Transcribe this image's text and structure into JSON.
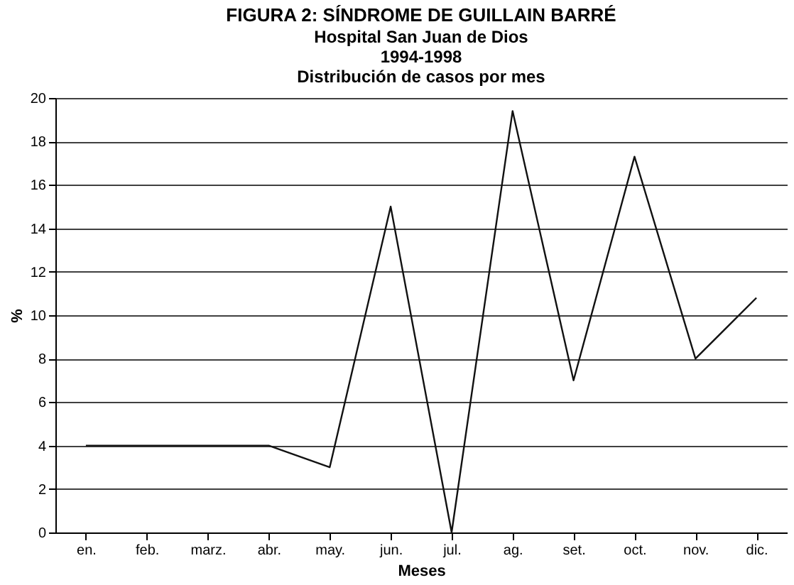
{
  "chart_data": {
    "type": "line",
    "title": "FIGURA 2: SÍNDROME DE GUILLAIN BARRÉ",
    "subtitle": "Hospital San Juan de Dios\n1994-1998\nDistribución de casos por mes",
    "xlabel": "Meses",
    "ylabel": "%",
    "categories": [
      "en.",
      "feb.",
      "marz.",
      "abr.",
      "may.",
      "jun.",
      "jul.",
      "ag.",
      "set.",
      "oct.",
      "nov.",
      "dic."
    ],
    "series": [
      {
        "color": "#111111",
        "values": [
          4,
          4,
          4,
          4,
          3,
          15,
          0,
          19.4,
          7,
          17.3,
          8,
          10.8
        ]
      }
    ],
    "ylim": [
      0,
      20
    ],
    "yticks": [
      0,
      2,
      4,
      6,
      8,
      10,
      12,
      14,
      16,
      18,
      20
    ],
    "grid": "y",
    "marker": "none",
    "line_style": "solid"
  }
}
